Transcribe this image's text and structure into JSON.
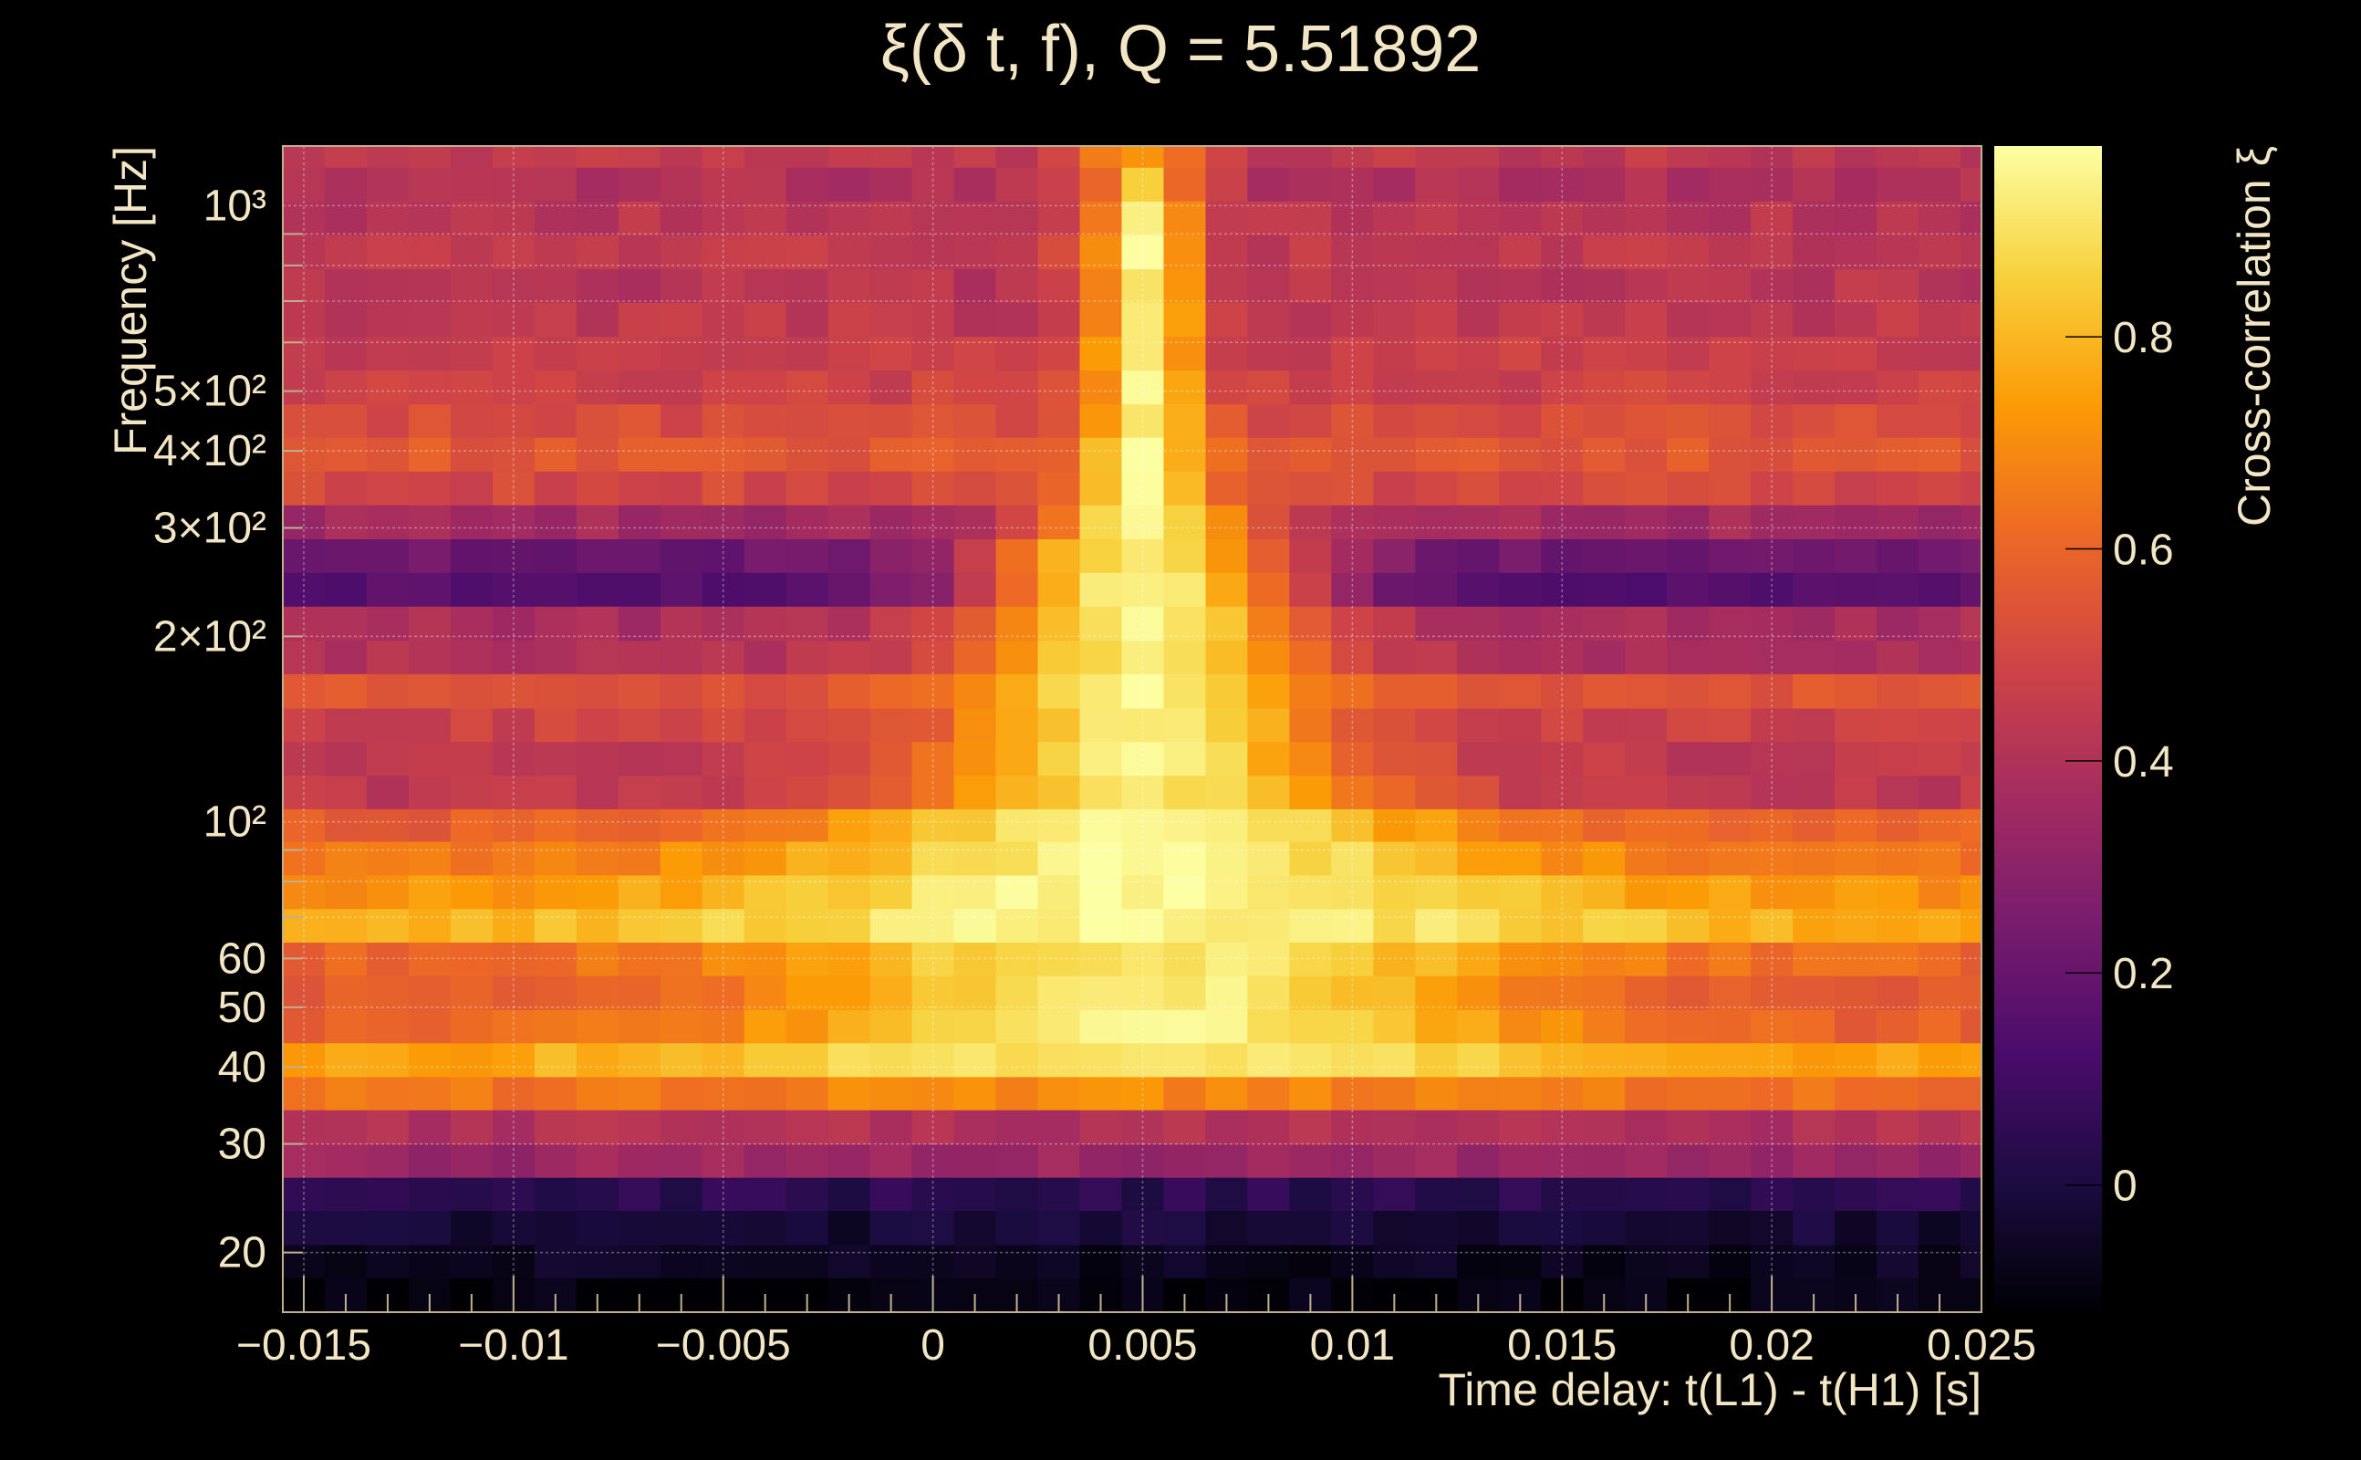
{
  "chart_data": {
    "type": "heatmap",
    "title": "ξ(δ t, f), Q = 5.51892",
    "xlabel": "Time delay: t(L1) - t(H1) [s]",
    "ylabel": "Frequency [Hz]",
    "colorbar_label": "Cross-correlation ξ",
    "xlim": [
      -0.0155,
      0.025
    ],
    "ylim": [
      16,
      1250
    ],
    "y_scale": "log",
    "zlim": [
      -0.12,
      0.98
    ],
    "x_ticks": [
      {
        "value": -0.015,
        "label": "−0.015"
      },
      {
        "value": -0.01,
        "label": "−0.01"
      },
      {
        "value": -0.005,
        "label": "−0.005"
      },
      {
        "value": 0,
        "label": "0"
      },
      {
        "value": 0.005,
        "label": "0.005"
      },
      {
        "value": 0.01,
        "label": "0.01"
      },
      {
        "value": 0.015,
        "label": "0.015"
      },
      {
        "value": 0.02,
        "label": "0.02"
      },
      {
        "value": 0.025,
        "label": "0.025"
      }
    ],
    "y_ticks": [
      {
        "value": 20,
        "label": "20"
      },
      {
        "value": 30,
        "label": "30"
      },
      {
        "value": 40,
        "label": "40"
      },
      {
        "value": 50,
        "label": "50"
      },
      {
        "value": 60,
        "label": "60"
      },
      {
        "value": 100,
        "label": "10²"
      },
      {
        "value": 200,
        "label": "2×10²"
      },
      {
        "value": 300,
        "label": "3×10²"
      },
      {
        "value": 400,
        "label": "4×10²"
      },
      {
        "value": 500,
        "label": "5×10²"
      },
      {
        "value": 1000,
        "label": "10³"
      }
    ],
    "colorbar_ticks": [
      {
        "value": 0,
        "label": "0"
      },
      {
        "value": 0.2,
        "label": "0.2"
      },
      {
        "value": 0.4,
        "label": "0.4"
      },
      {
        "value": 0.6,
        "label": "0.6"
      },
      {
        "value": 0.8,
        "label": "0.8"
      }
    ],
    "grid": true,
    "colormap": [
      "#000004",
      "#1b0c41",
      "#4a0c6b",
      "#781c6d",
      "#a52c60",
      "#cf4446",
      "#ed6925",
      "#fb9b06",
      "#f7d13d",
      "#fcffa4"
    ],
    "time_bins": {
      "start": -0.0155,
      "step": 0.001,
      "count": 41
    },
    "frequency_bands": [
      {
        "f_low": 16.0,
        "f_high": 18.2,
        "base": -0.1,
        "peak_amp": 0.0,
        "peak_width": 0.012
      },
      {
        "f_low": 18.2,
        "f_high": 20.6,
        "base": -0.06,
        "peak_amp": 0.0,
        "peak_width": 0.012
      },
      {
        "f_low": 20.6,
        "f_high": 23.4,
        "base": -0.02,
        "peak_amp": 0.0,
        "peak_width": 0.012
      },
      {
        "f_low": 23.4,
        "f_high": 26.5,
        "base": 0.04,
        "peak_amp": 0.0,
        "peak_width": 0.012
      },
      {
        "f_low": 26.5,
        "f_high": 30.0,
        "base": 0.34,
        "peak_amp": 0.0,
        "peak_width": 0.012
      },
      {
        "f_low": 30.0,
        "f_high": 34.1,
        "base": 0.4,
        "peak_amp": 0.0,
        "peak_width": 0.012
      },
      {
        "f_low": 34.1,
        "f_high": 38.6,
        "base": 0.62,
        "peak_amp": 0.07,
        "peak_width": 0.01
      },
      {
        "f_low": 38.6,
        "f_high": 43.8,
        "base": 0.72,
        "peak_amp": 0.2,
        "peak_width": 0.009
      },
      {
        "f_low": 43.8,
        "f_high": 49.6,
        "base": 0.58,
        "peak_amp": 0.36,
        "peak_width": 0.0065
      },
      {
        "f_low": 49.6,
        "f_high": 56.3,
        "base": 0.56,
        "peak_amp": 0.38,
        "peak_width": 0.006
      },
      {
        "f_low": 56.3,
        "f_high": 63.8,
        "base": 0.6,
        "peak_amp": 0.32,
        "peak_width": 0.0065
      },
      {
        "f_low": 63.8,
        "f_high": 72.3,
        "base": 0.76,
        "peak_amp": 0.2,
        "peak_width": 0.008
      },
      {
        "f_low": 72.3,
        "f_high": 82.0,
        "base": 0.7,
        "peak_amp": 0.26,
        "peak_width": 0.007
      },
      {
        "f_low": 82.0,
        "f_high": 93.0,
        "base": 0.64,
        "peak_amp": 0.32,
        "peak_width": 0.006
      },
      {
        "f_low": 93.0,
        "f_high": 105.0,
        "base": 0.58,
        "peak_amp": 0.38,
        "peak_width": 0.005
      },
      {
        "f_low": 105.0,
        "f_high": 119.0,
        "base": 0.44,
        "peak_amp": 0.48,
        "peak_width": 0.004
      },
      {
        "f_low": 119.0,
        "f_high": 135.0,
        "base": 0.44,
        "peak_amp": 0.5,
        "peak_width": 0.0035
      },
      {
        "f_low": 135.0,
        "f_high": 153.0,
        "base": 0.48,
        "peak_amp": 0.46,
        "peak_width": 0.003
      },
      {
        "f_low": 153.0,
        "f_high": 174.0,
        "base": 0.54,
        "peak_amp": 0.4,
        "peak_width": 0.003
      },
      {
        "f_low": 174.0,
        "f_high": 197.0,
        "base": 0.4,
        "peak_amp": 0.52,
        "peak_width": 0.003
      },
      {
        "f_low": 197.0,
        "f_high": 224.0,
        "base": 0.38,
        "peak_amp": 0.56,
        "peak_width": 0.0028
      },
      {
        "f_low": 224.0,
        "f_high": 254.0,
        "base": 0.16,
        "peak_amp": 0.78,
        "peak_width": 0.0028
      },
      {
        "f_low": 254.0,
        "f_high": 288.0,
        "base": 0.22,
        "peak_amp": 0.72,
        "peak_width": 0.0026
      },
      {
        "f_low": 288.0,
        "f_high": 327.0,
        "base": 0.36,
        "peak_amp": 0.58,
        "peak_width": 0.0018
      },
      {
        "f_low": 327.0,
        "f_high": 371.0,
        "base": 0.5,
        "peak_amp": 0.44,
        "peak_width": 0.0012
      },
      {
        "f_low": 371.0,
        "f_high": 421.0,
        "base": 0.56,
        "peak_amp": 0.38,
        "peak_width": 0.001
      },
      {
        "f_low": 421.0,
        "f_high": 477.0,
        "base": 0.52,
        "peak_amp": 0.42,
        "peak_width": 0.0009
      },
      {
        "f_low": 477.0,
        "f_high": 541.0,
        "base": 0.48,
        "peak_amp": 0.46,
        "peak_width": 0.0009
      },
      {
        "f_low": 541.0,
        "f_high": 614.0,
        "base": 0.46,
        "peak_amp": 0.48,
        "peak_width": 0.0009
      },
      {
        "f_low": 614.0,
        "f_high": 697.0,
        "base": 0.44,
        "peak_amp": 0.5,
        "peak_width": 0.0009
      },
      {
        "f_low": 697.0,
        "f_high": 790.0,
        "base": 0.42,
        "peak_amp": 0.52,
        "peak_width": 0.0009
      },
      {
        "f_low": 790.0,
        "f_high": 897.0,
        "base": 0.44,
        "peak_amp": 0.5,
        "peak_width": 0.0009
      },
      {
        "f_low": 897.0,
        "f_high": 1018.0,
        "base": 0.42,
        "peak_amp": 0.5,
        "peak_width": 0.0009
      },
      {
        "f_low": 1018.0,
        "f_high": 1155.0,
        "base": 0.4,
        "peak_amp": 0.42,
        "peak_width": 0.0009
      },
      {
        "f_low": 1155.0,
        "f_high": 1250.0,
        "base": 0.44,
        "peak_amp": 0.3,
        "peak_width": 0.001
      }
    ],
    "peak_center": 0.005
  }
}
